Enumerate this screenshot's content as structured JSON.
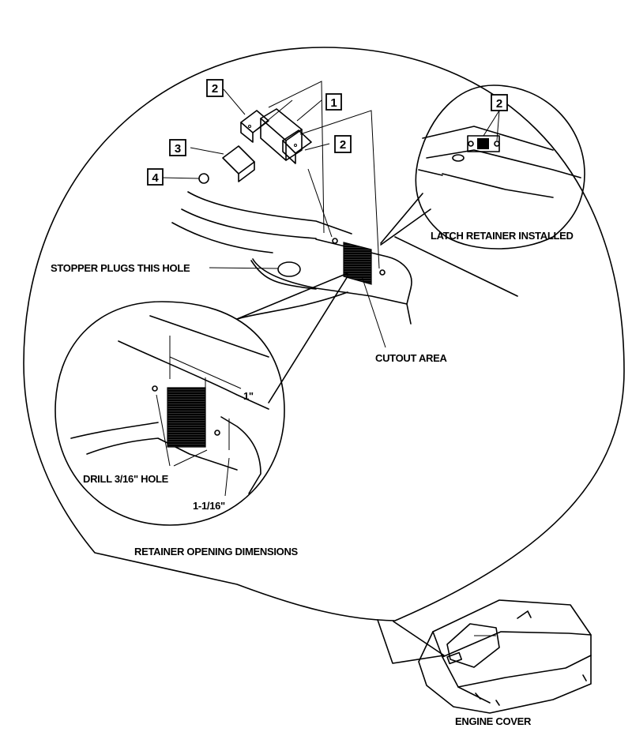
{
  "callouts": {
    "c1": "1",
    "c2a": "2",
    "c2b": "2",
    "c2c": "2",
    "c3": "3",
    "c4": "4"
  },
  "labels": {
    "latch_installed": "LATCH RETAINER INSTALLED",
    "stopper": "STOPPER PLUGS THIS HOLE",
    "cutout": "CUTOUT AREA",
    "dim_1": "1\"",
    "drill": "DRILL 3/16\" HOLE",
    "dim_2": "1-1/16\"",
    "retainer_opening": "RETAINER OPENING DIMENSIONS",
    "engine_cover": "ENGINE COVER"
  }
}
